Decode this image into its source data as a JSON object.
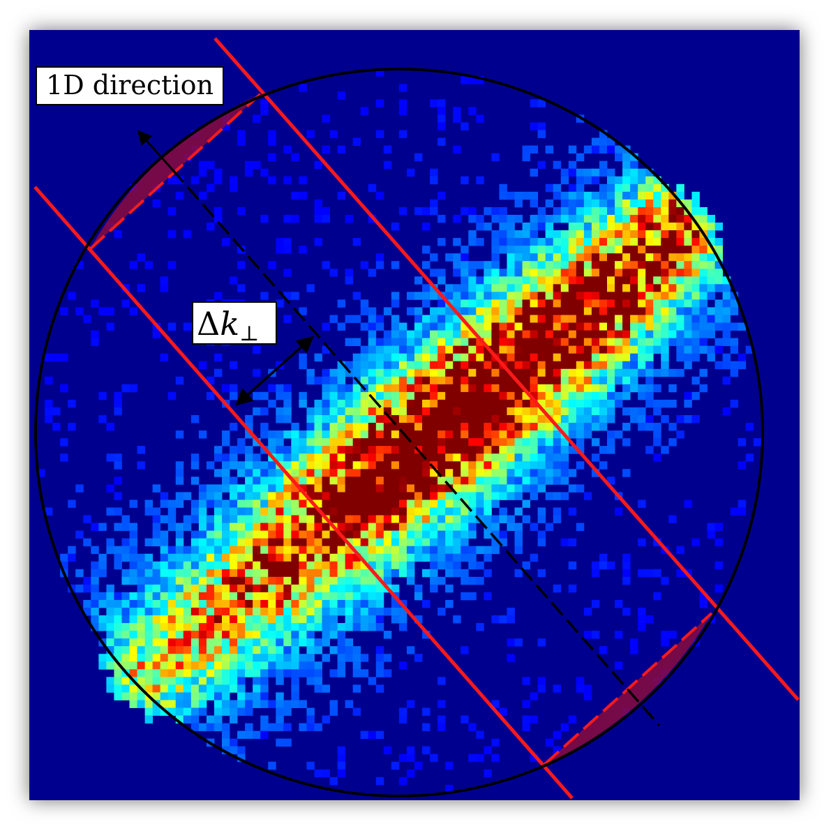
{
  "labels": {
    "direction": "1D direction",
    "delta_symbol": "Δ",
    "k_symbol": "k",
    "perp_symbol": "⊥"
  },
  "colors": {
    "background_blue": "#00008f",
    "circle": "#000000",
    "cut_lines": "#ff1a1a",
    "excluded_region_fill": "#8b0a3c",
    "axis_dashed": "#000000",
    "arrows": "#000000",
    "colormap": "jet"
  }
}
